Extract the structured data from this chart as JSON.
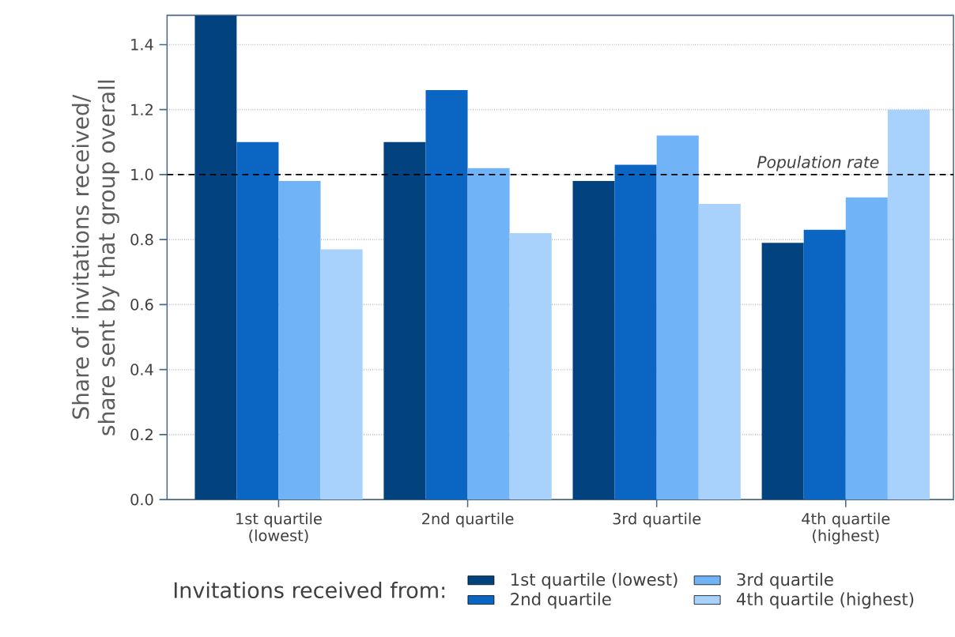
{
  "chart_data": {
    "type": "bar",
    "ylabel": "Share of invitations received/ share sent by that group overall",
    "legend_title": "Invitations received from:",
    "categories": [
      "1st quartile (lowest)",
      "2nd quartile",
      "3rd quartile",
      "4th quartile (highest)"
    ],
    "series": [
      {
        "name": "1st quartile (lowest)",
        "color": "#02427f",
        "values": [
          1.49,
          1.1,
          0.98,
          0.79
        ]
      },
      {
        "name": "2nd quartile",
        "color": "#0a66c2",
        "values": [
          1.1,
          1.26,
          1.03,
          0.83
        ]
      },
      {
        "name": "3rd quartile",
        "color": "#70b3f7",
        "values": [
          0.98,
          1.02,
          1.12,
          0.93
        ]
      },
      {
        "name": "4th quartile (highest)",
        "color": "#a8d1fc",
        "values": [
          0.77,
          0.82,
          0.91,
          1.2
        ]
      }
    ],
    "ylim": [
      0,
      1.49
    ],
    "yticks": [
      {
        "value": 0,
        "label": "0.0"
      },
      0.2,
      0.4,
      0.6,
      0.8,
      {
        "value": 1,
        "label": "1.0"
      },
      1.2,
      1.4
    ],
    "ref_lines": [
      {
        "axis": "y",
        "value": 1,
        "label": "*Population rate*",
        "color": "#000000",
        "line_style": "dashed"
      }
    ],
    "grid": "y",
    "legend": "bottom"
  }
}
